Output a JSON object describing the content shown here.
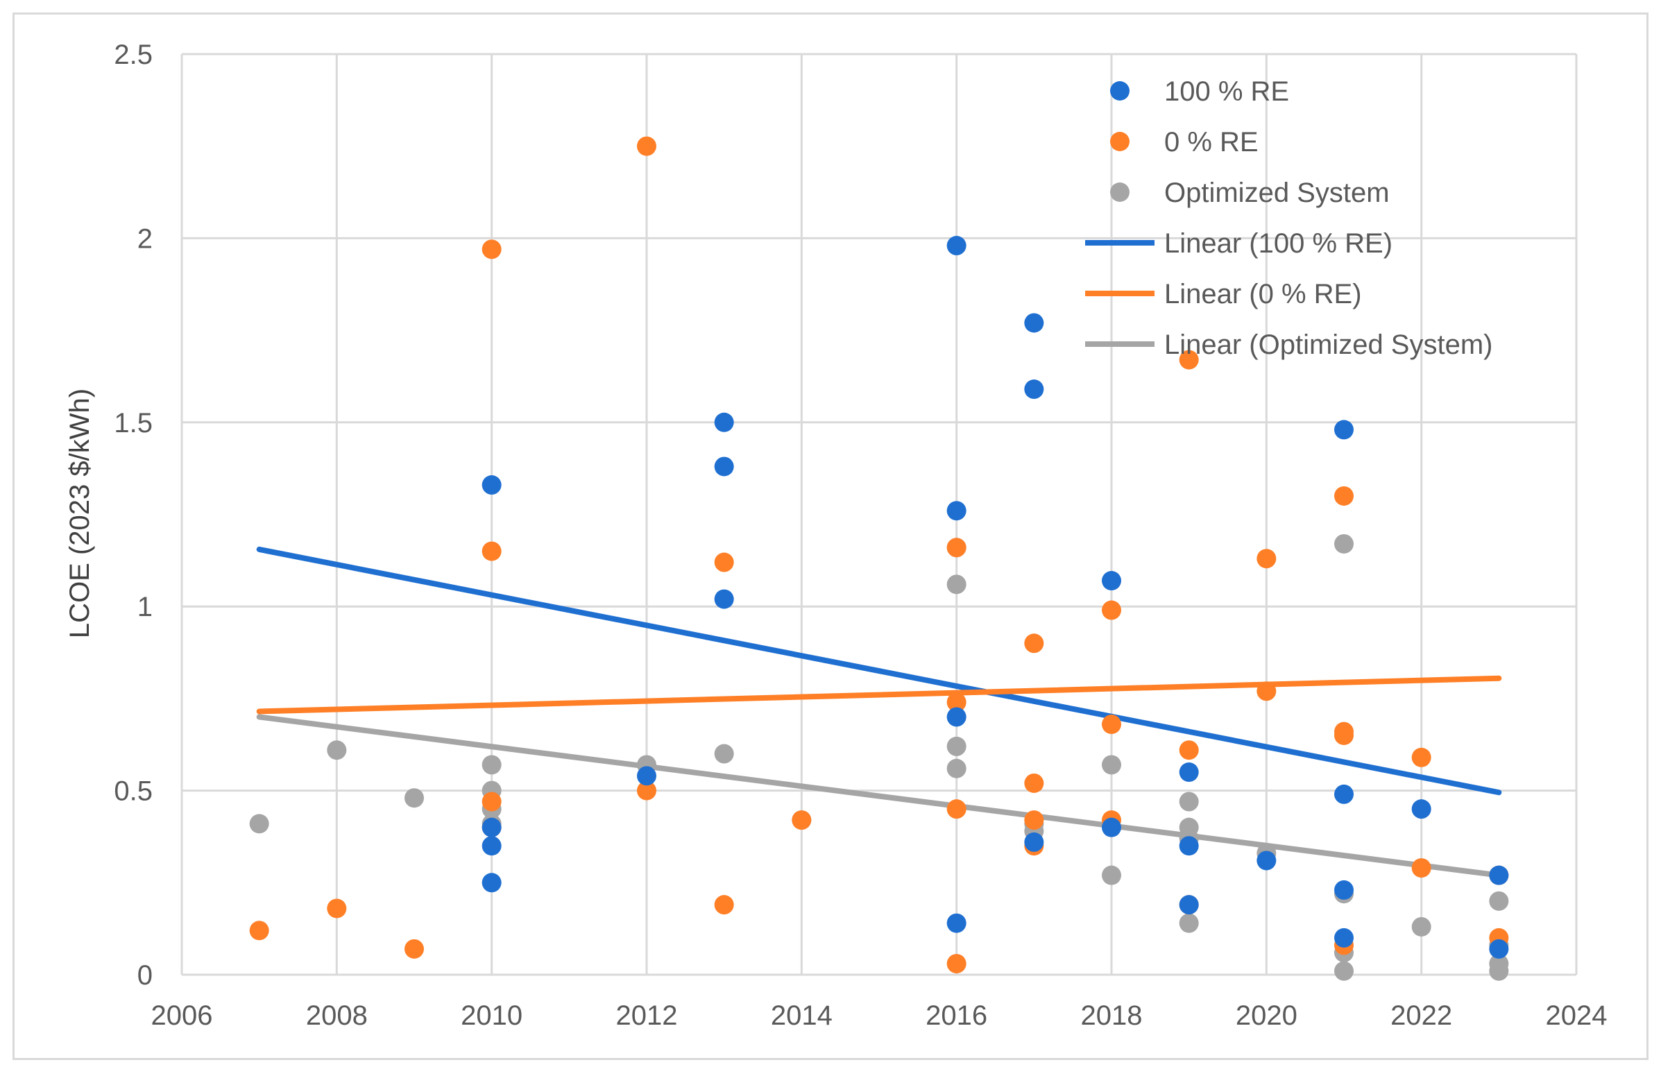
{
  "chart_data": {
    "type": "scatter",
    "title": "",
    "xlabel": "",
    "ylabel": "LCOE (2023 $/kWh)",
    "xlim": [
      2006,
      2024
    ],
    "ylim": [
      0,
      2.5
    ],
    "xticks": [
      2006,
      2008,
      2010,
      2012,
      2014,
      2016,
      2018,
      2020,
      2022,
      2024
    ],
    "yticks": [
      0,
      0.5,
      1,
      1.5,
      2,
      2.5
    ],
    "xtick_labels": [
      "2006",
      "2008",
      "2010",
      "2012",
      "2014",
      "2016",
      "2018",
      "2020",
      "2022",
      "2024"
    ],
    "ytick_labels": [
      "0",
      "0.5",
      "1",
      "1.5",
      "2",
      "2.5"
    ],
    "grid": true,
    "legend_position": "top-right",
    "series": [
      {
        "name": "100 % RE",
        "color": "#1f6fd1",
        "points": [
          [
            2010,
            1.33
          ],
          [
            2010,
            0.35
          ],
          [
            2010,
            0.25
          ],
          [
            2010,
            0.4
          ],
          [
            2012,
            0.54
          ],
          [
            2013,
            1.5
          ],
          [
            2013,
            1.38
          ],
          [
            2013,
            1.02
          ],
          [
            2016,
            1.98
          ],
          [
            2016,
            1.26
          ],
          [
            2016,
            0.7
          ],
          [
            2016,
            0.14
          ],
          [
            2017,
            1.77
          ],
          [
            2017,
            1.59
          ],
          [
            2017,
            0.36
          ],
          [
            2018,
            1.07
          ],
          [
            2018,
            0.4
          ],
          [
            2019,
            0.55
          ],
          [
            2019,
            0.35
          ],
          [
            2019,
            0.19
          ],
          [
            2020,
            0.31
          ],
          [
            2021,
            1.48
          ],
          [
            2021,
            0.49
          ],
          [
            2021,
            0.23
          ],
          [
            2021,
            0.1
          ],
          [
            2022,
            0.45
          ],
          [
            2023,
            0.27
          ],
          [
            2023,
            0.07
          ]
        ]
      },
      {
        "name": "0 % RE",
        "color": "#ff7f27",
        "points": [
          [
            2007,
            0.12
          ],
          [
            2008,
            0.18
          ],
          [
            2009,
            0.07
          ],
          [
            2010,
            1.97
          ],
          [
            2010,
            1.15
          ],
          [
            2010,
            0.47
          ],
          [
            2010,
            0.4
          ],
          [
            2012,
            2.25
          ],
          [
            2012,
            0.5
          ],
          [
            2013,
            1.12
          ],
          [
            2013,
            0.19
          ],
          [
            2014,
            0.42
          ],
          [
            2016,
            1.16
          ],
          [
            2016,
            0.74
          ],
          [
            2016,
            0.45
          ],
          [
            2016,
            0.03
          ],
          [
            2017,
            0.9
          ],
          [
            2017,
            0.52
          ],
          [
            2017,
            0.42
          ],
          [
            2017,
            0.35
          ],
          [
            2018,
            0.99
          ],
          [
            2018,
            0.68
          ],
          [
            2018,
            0.42
          ],
          [
            2019,
            1.67
          ],
          [
            2019,
            0.61
          ],
          [
            2019,
            0.19
          ],
          [
            2020,
            1.13
          ],
          [
            2020,
            0.77
          ],
          [
            2021,
            1.3
          ],
          [
            2021,
            0.66
          ],
          [
            2021,
            0.65
          ],
          [
            2021,
            0.08
          ],
          [
            2022,
            0.59
          ],
          [
            2022,
            0.29
          ],
          [
            2023,
            0.27
          ],
          [
            2023,
            0.1
          ]
        ]
      },
      {
        "name": "Optimized System",
        "color": "#a5a5a5",
        "points": [
          [
            2007,
            0.41
          ],
          [
            2008,
            0.61
          ],
          [
            2009,
            0.48
          ],
          [
            2010,
            0.57
          ],
          [
            2010,
            0.5
          ],
          [
            2010,
            0.45
          ],
          [
            2010,
            0.41
          ],
          [
            2012,
            0.57
          ],
          [
            2013,
            0.6
          ],
          [
            2014,
            0.42
          ],
          [
            2016,
            1.16
          ],
          [
            2016,
            1.06
          ],
          [
            2016,
            0.62
          ],
          [
            2016,
            0.56
          ],
          [
            2017,
            0.41
          ],
          [
            2017,
            0.39
          ],
          [
            2018,
            0.57
          ],
          [
            2018,
            0.27
          ],
          [
            2019,
            0.47
          ],
          [
            2019,
            0.4
          ],
          [
            2019,
            0.37
          ],
          [
            2019,
            0.14
          ],
          [
            2020,
            0.33
          ],
          [
            2021,
            1.17
          ],
          [
            2021,
            0.22
          ],
          [
            2021,
            0.06
          ],
          [
            2021,
            0.01
          ],
          [
            2022,
            0.13
          ],
          [
            2023,
            0.2
          ],
          [
            2023,
            0.08
          ],
          [
            2023,
            0.03
          ],
          [
            2023,
            0.01
          ]
        ]
      }
    ],
    "trendlines": [
      {
        "name": "Linear (100 % RE)",
        "color": "#1f6fd1",
        "x": [
          2007,
          2023
        ],
        "y": [
          1.155,
          0.495
        ]
      },
      {
        "name": "Linear (0 % RE)",
        "color": "#ff7f27",
        "x": [
          2007,
          2023
        ],
        "y": [
          0.715,
          0.805
        ]
      },
      {
        "name": "Linear (Optimized System)",
        "color": "#a5a5a5",
        "x": [
          2007,
          2023
        ],
        "y": [
          0.7,
          0.27
        ]
      }
    ],
    "legend": [
      {
        "label": "100 % RE",
        "kind": "marker",
        "color": "#1f6fd1"
      },
      {
        "label": "0 % RE",
        "kind": "marker",
        "color": "#ff7f27"
      },
      {
        "label": "Optimized System",
        "kind": "marker",
        "color": "#a5a5a5"
      },
      {
        "label": "Linear (100 % RE)",
        "kind": "line",
        "color": "#1f6fd1"
      },
      {
        "label": "Linear (0 % RE)",
        "kind": "line",
        "color": "#ff7f27"
      },
      {
        "label": "Linear (Optimized System)",
        "kind": "line",
        "color": "#a5a5a5"
      }
    ]
  }
}
